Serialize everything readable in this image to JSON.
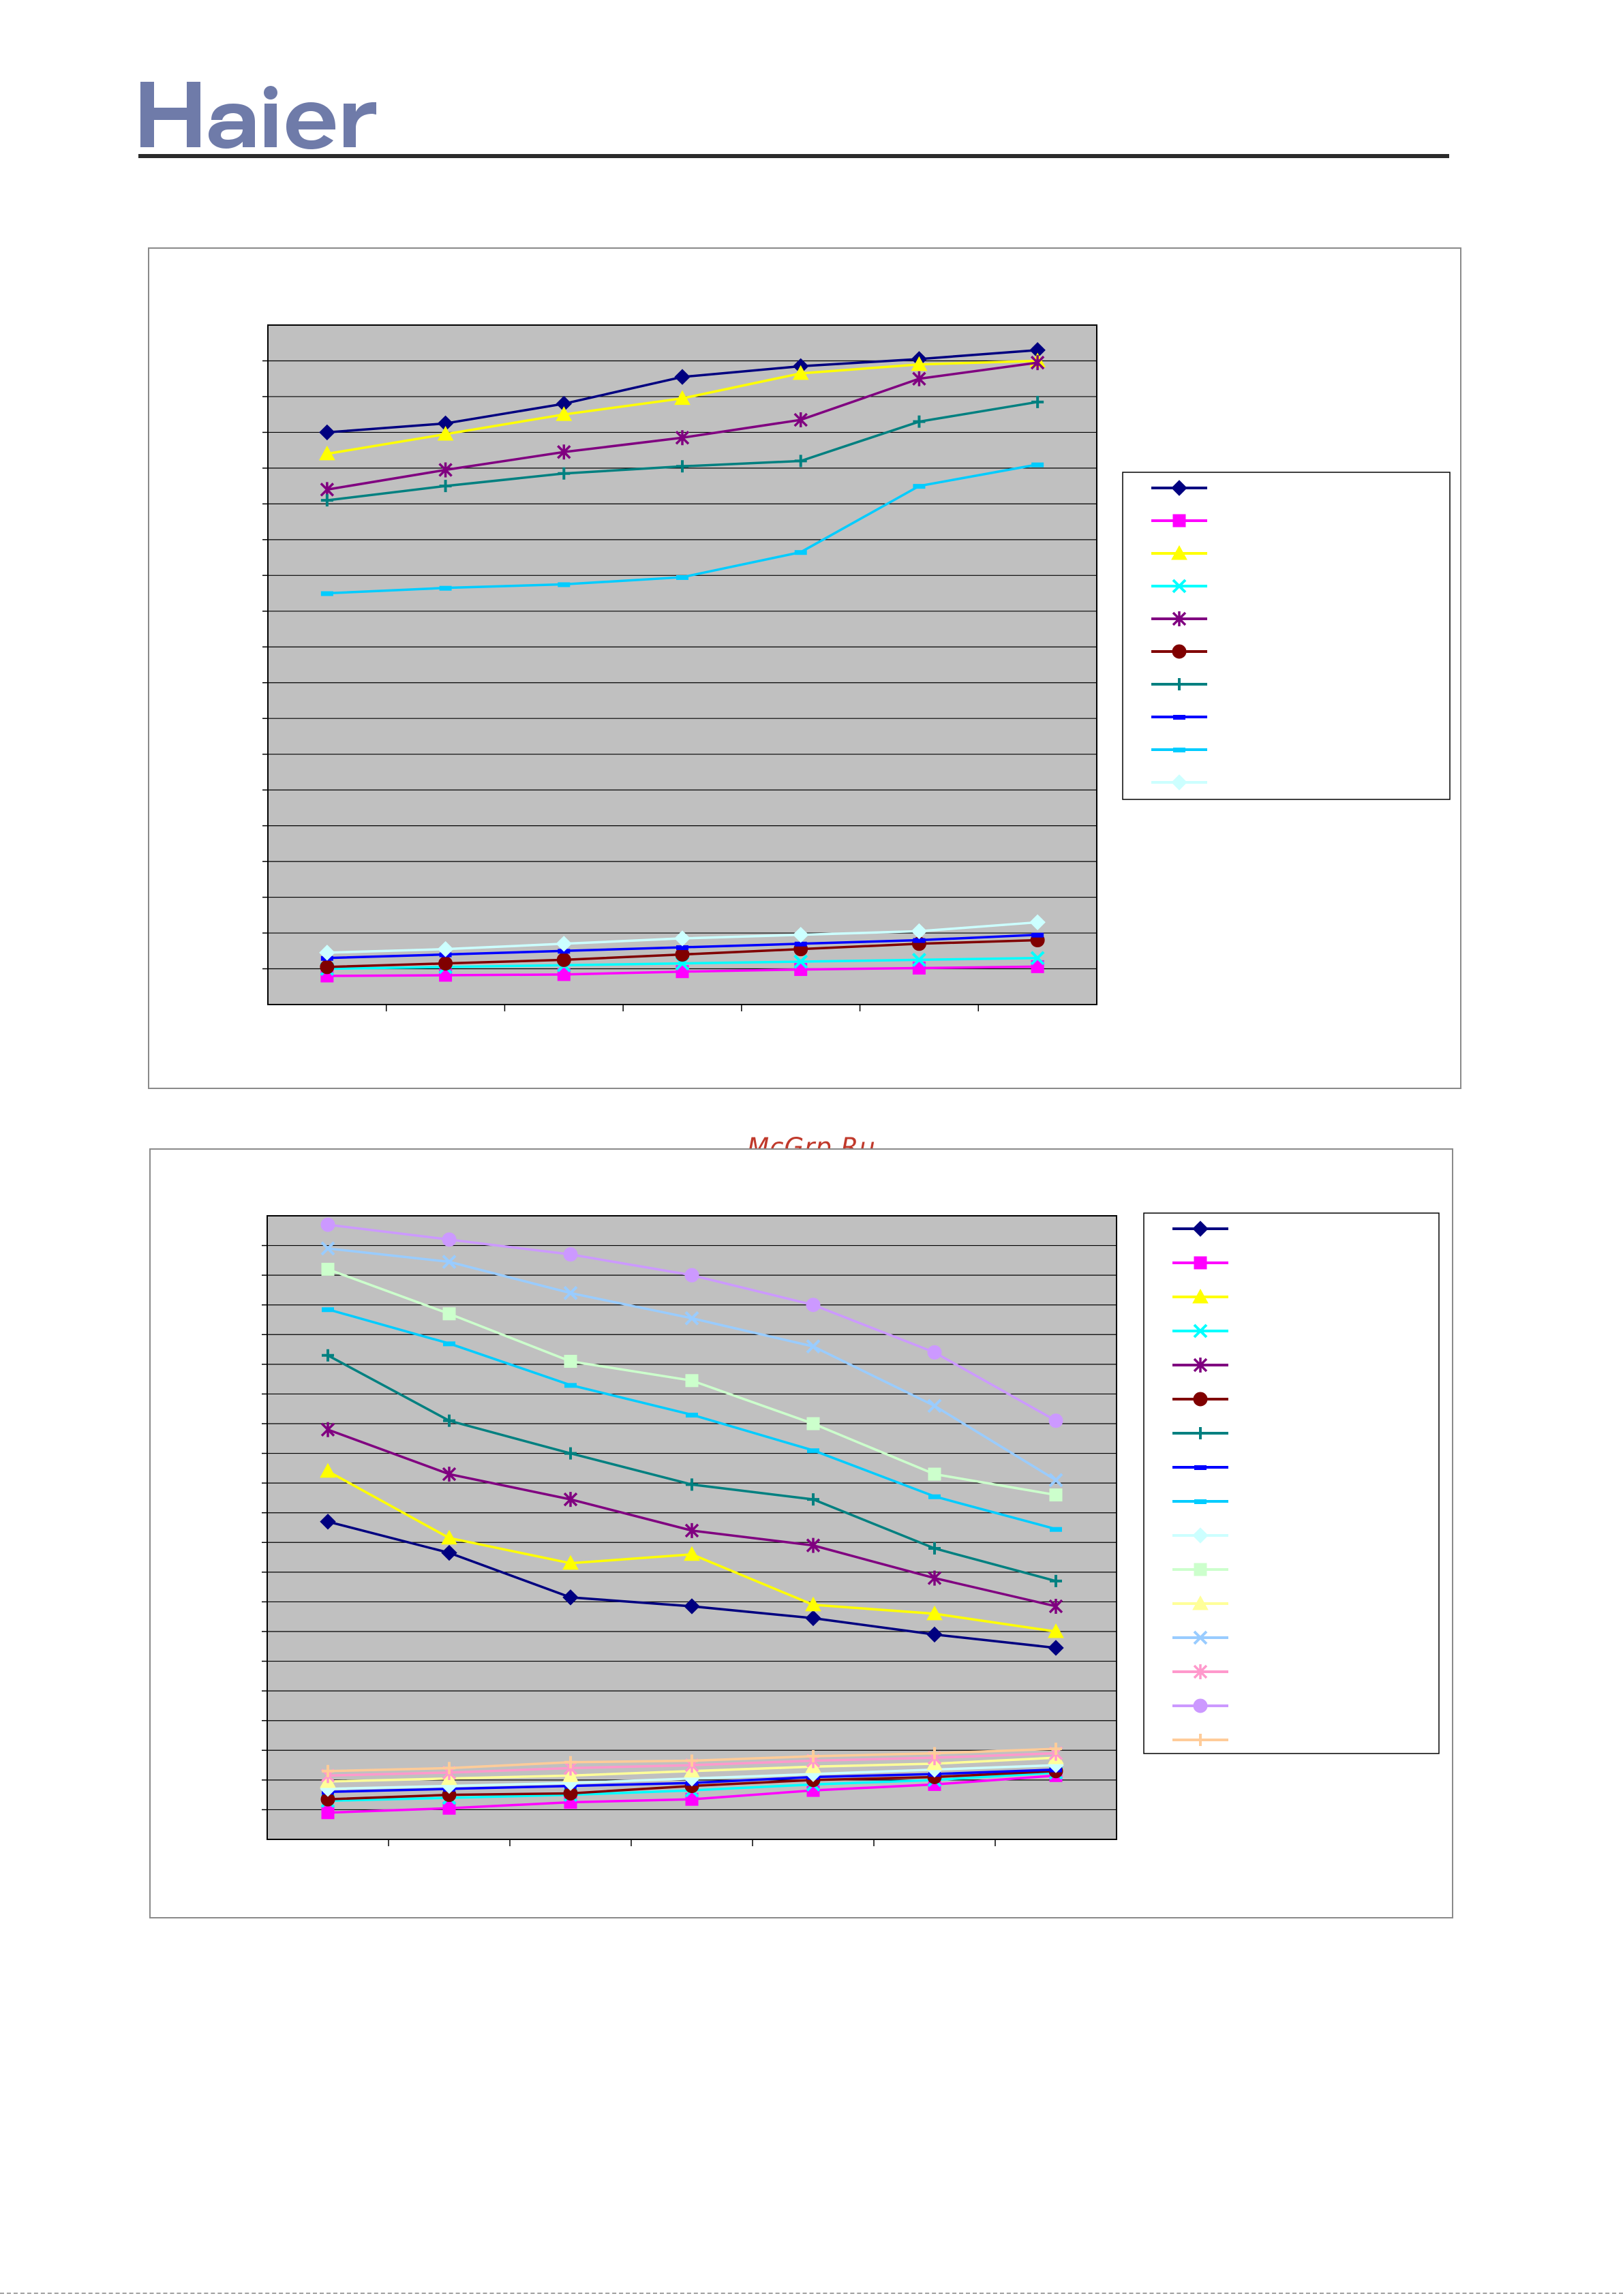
{
  "brand": {
    "name": "Haier",
    "color": "#6f7ba9"
  },
  "watermark": "McGrp.Ru",
  "colors": {
    "plot_bg": "#c0c0c0",
    "gridline": "#000000",
    "frame": "#8a8a8a"
  },
  "chart_data": [
    {
      "type": "line",
      "title": "",
      "xlabel": "",
      "ylabel": "",
      "grid": true,
      "legend_placement": "right",
      "ylim": [
        0,
        19
      ],
      "x": [
        1,
        2,
        3,
        4,
        5,
        6,
        7
      ],
      "series": [
        {
          "color": "#000080",
          "marker": "diamond",
          "values": [
            16.0,
            16.25,
            16.8,
            17.55,
            17.85,
            18.05,
            18.3
          ]
        },
        {
          "color": "#ff00ff",
          "marker": "square",
          "values": [
            0.8,
            0.82,
            0.84,
            0.92,
            0.98,
            1.02,
            1.06
          ]
        },
        {
          "color": "#ffff00",
          "marker": "triangle",
          "values": [
            15.4,
            15.95,
            16.5,
            16.95,
            17.65,
            17.9,
            18.0
          ]
        },
        {
          "color": "#00ffff",
          "marker": "x",
          "values": [
            1.0,
            1.05,
            1.1,
            1.15,
            1.2,
            1.25,
            1.3
          ]
        },
        {
          "color": "#800080",
          "marker": "asterisk",
          "values": [
            14.4,
            14.95,
            15.45,
            15.85,
            16.35,
            17.5,
            17.95
          ]
        },
        {
          "color": "#800000",
          "marker": "circle",
          "values": [
            1.05,
            1.15,
            1.25,
            1.4,
            1.55,
            1.7,
            1.8
          ]
        },
        {
          "color": "#008080",
          "marker": "plus",
          "values": [
            14.1,
            14.5,
            14.85,
            15.05,
            15.2,
            16.3,
            16.85
          ]
        },
        {
          "color": "#0000ff",
          "marker": "dash",
          "values": [
            1.3,
            1.4,
            1.5,
            1.6,
            1.7,
            1.8,
            1.95
          ]
        },
        {
          "color": "#00ccff",
          "marker": "dash",
          "values": [
            11.5,
            11.65,
            11.75,
            11.95,
            12.65,
            14.5,
            15.1
          ]
        },
        {
          "color": "#ccffff",
          "marker": "diamond",
          "values": [
            1.45,
            1.55,
            1.7,
            1.85,
            1.95,
            2.05,
            2.3
          ]
        }
      ]
    },
    {
      "type": "line",
      "title": "",
      "xlabel": "",
      "ylabel": "",
      "grid": true,
      "legend_placement": "right",
      "ylim": [
        0,
        21
      ],
      "x": [
        1,
        2,
        3,
        4,
        5,
        6,
        7
      ],
      "series": [
        {
          "color": "#000080",
          "marker": "diamond",
          "values": [
            10.7,
            9.65,
            8.15,
            7.85,
            7.45,
            6.9,
            6.45
          ]
        },
        {
          "color": "#ff00ff",
          "marker": "square",
          "values": [
            0.9,
            1.05,
            1.25,
            1.35,
            1.65,
            1.85,
            2.15
          ]
        },
        {
          "color": "#ffff00",
          "marker": "triangle",
          "values": [
            12.4,
            10.15,
            9.3,
            9.6,
            7.9,
            7.6,
            7.0
          ]
        },
        {
          "color": "#00ffff",
          "marker": "x",
          "values": [
            1.3,
            1.4,
            1.5,
            1.65,
            1.85,
            2.0,
            2.25
          ]
        },
        {
          "color": "#800080",
          "marker": "asterisk",
          "values": [
            13.8,
            12.3,
            11.45,
            10.4,
            9.9,
            8.8,
            7.85
          ]
        },
        {
          "color": "#800000",
          "marker": "circle",
          "values": [
            1.35,
            1.5,
            1.55,
            1.8,
            2.0,
            2.1,
            2.3
          ]
        },
        {
          "color": "#008080",
          "marker": "plus",
          "values": [
            16.3,
            14.1,
            13.0,
            11.95,
            11.45,
            9.8,
            8.7
          ]
        },
        {
          "color": "#0000ff",
          "marker": "dash",
          "values": [
            1.6,
            1.7,
            1.8,
            1.9,
            2.1,
            2.2,
            2.35
          ]
        },
        {
          "color": "#00ccff",
          "marker": "dash",
          "values": [
            17.85,
            16.7,
            15.3,
            14.3,
            13.1,
            11.55,
            10.45
          ]
        },
        {
          "color": "#ccffff",
          "marker": "diamond",
          "values": [
            1.7,
            1.8,
            1.9,
            2.05,
            2.2,
            2.35,
            2.5
          ]
        },
        {
          "color": "#ccffcc",
          "marker": "square",
          "values": [
            19.2,
            17.7,
            16.1,
            15.45,
            14.0,
            12.3,
            11.6
          ]
        },
        {
          "color": "#ffff99",
          "marker": "triangle",
          "values": [
            1.95,
            2.05,
            2.15,
            2.3,
            2.45,
            2.55,
            2.75
          ]
        },
        {
          "color": "#99ccff",
          "marker": "x",
          "values": [
            19.9,
            19.45,
            18.4,
            17.55,
            16.6,
            14.6,
            12.1
          ]
        },
        {
          "color": "#ff99cc",
          "marker": "asterisk",
          "values": [
            2.15,
            2.25,
            2.4,
            2.5,
            2.65,
            2.75,
            2.9
          ]
        },
        {
          "color": "#cc99ff",
          "marker": "circle",
          "values": [
            20.7,
            20.2,
            19.7,
            19.0,
            18.0,
            16.4,
            14.1
          ]
        },
        {
          "color": "#ffcc99",
          "marker": "plus",
          "values": [
            2.3,
            2.4,
            2.6,
            2.65,
            2.8,
            2.9,
            3.05
          ]
        }
      ]
    }
  ]
}
